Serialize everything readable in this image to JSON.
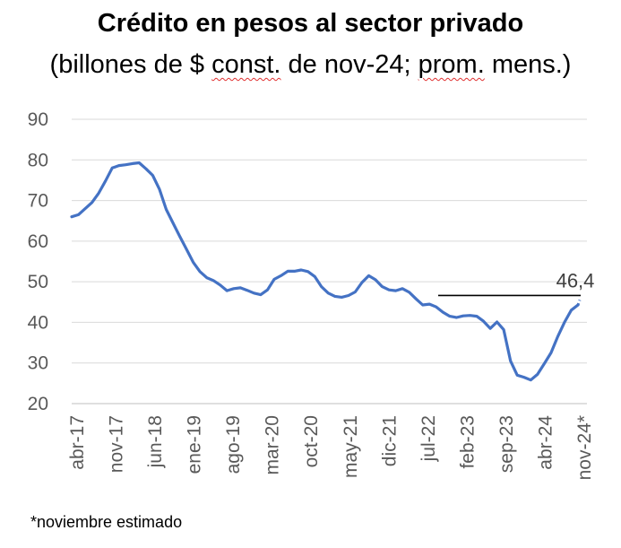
{
  "chart_data": {
    "type": "line",
    "title": "Crédito en pesos al sector privado",
    "subtitle_parts": [
      "(billones de $ ",
      "const.",
      " de nov-24; ",
      "prom.",
      " mens.)"
    ],
    "footnote": "*noviembre estimado",
    "ylim": [
      20,
      90
    ],
    "yticks": [
      20,
      30,
      40,
      50,
      60,
      70,
      80,
      90
    ],
    "grid": true,
    "x_tick_labels": [
      "abr-17",
      "nov-17",
      "jun-18",
      "ene-19",
      "ago-19",
      "mar-20",
      "oct-20",
      "may-21",
      "dic-21",
      "jul-22",
      "feb-23",
      "sep-23",
      "abr-24",
      "nov-24*"
    ],
    "series": [
      {
        "color": "#4472C4",
        "x_start": "abr-17",
        "x_end": "nov-24",
        "values": [
          66.0,
          66.5,
          68.0,
          69.5,
          71.8,
          74.8,
          78.0,
          78.6,
          78.8,
          79.1,
          79.3,
          77.8,
          76.2,
          72.8,
          67.8,
          64.5,
          61.2,
          58.0,
          54.8,
          52.5,
          51.0,
          50.3,
          49.2,
          47.8,
          48.3,
          48.5,
          47.9,
          47.2,
          46.8,
          48.0,
          50.6,
          51.5,
          52.6,
          52.6,
          52.9,
          52.5,
          51.3,
          48.8,
          47.2,
          46.4,
          46.2,
          46.6,
          47.5,
          49.8,
          51.5,
          50.5,
          48.8,
          48.0,
          47.8,
          48.3,
          47.4,
          45.8,
          44.3,
          44.5,
          43.8,
          42.5,
          41.5,
          41.2,
          41.6,
          41.7,
          41.5,
          40.3,
          38.5,
          40.1,
          38.2,
          30.5,
          27.0,
          26.5,
          25.8,
          27.2,
          29.8,
          32.5,
          36.5,
          40.0,
          43.0,
          44.3
        ]
      }
    ],
    "annotation": {
      "label": "46,4",
      "value": 46.4,
      "from": "jul-22",
      "to": "nov-24"
    }
  }
}
